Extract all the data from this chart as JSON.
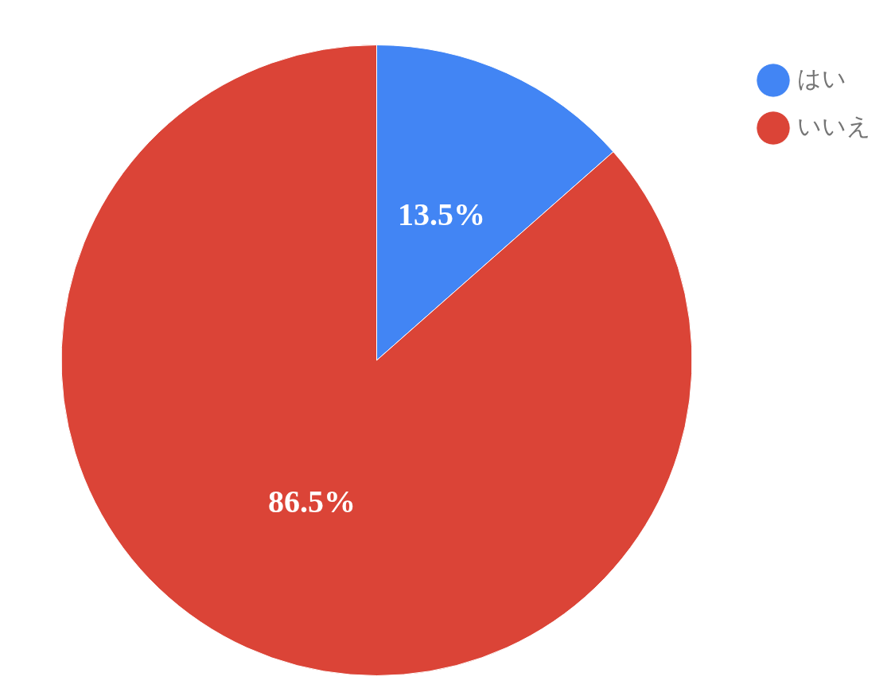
{
  "chart_data": {
    "type": "pie",
    "categories": [
      "はい",
      "いいえ"
    ],
    "values": [
      13.5,
      86.5
    ],
    "colors": [
      "#4285f4",
      "#db4437"
    ],
    "value_labels": [
      "13.5%",
      "86.5%"
    ],
    "legend": "top right"
  }
}
